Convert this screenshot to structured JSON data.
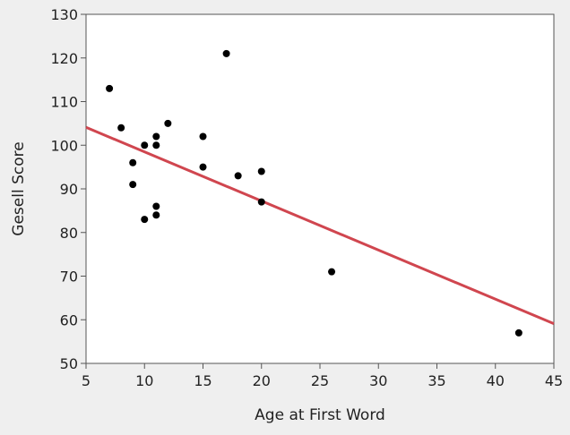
{
  "chart_data": {
    "type": "scatter",
    "title": "",
    "xlabel": "Age at First Word",
    "ylabel": "Gesell Score",
    "xlim": [
      5,
      45
    ],
    "ylim": [
      50,
      130
    ],
    "x_ticks": [
      5,
      10,
      15,
      20,
      25,
      30,
      35,
      40,
      45
    ],
    "y_ticks": [
      50,
      60,
      70,
      80,
      90,
      100,
      110,
      120,
      130
    ],
    "grid": false,
    "legend": "none",
    "points": [
      {
        "x": 7,
        "y": 113
      },
      {
        "x": 8,
        "y": 104
      },
      {
        "x": 9,
        "y": 96
      },
      {
        "x": 9,
        "y": 91
      },
      {
        "x": 10,
        "y": 100
      },
      {
        "x": 10,
        "y": 83
      },
      {
        "x": 11,
        "y": 102
      },
      {
        "x": 11,
        "y": 100
      },
      {
        "x": 11,
        "y": 86
      },
      {
        "x": 11,
        "y": 84
      },
      {
        "x": 12,
        "y": 105
      },
      {
        "x": 15,
        "y": 102
      },
      {
        "x": 15,
        "y": 95
      },
      {
        "x": 17,
        "y": 121
      },
      {
        "x": 18,
        "y": 93
      },
      {
        "x": 20,
        "y": 94
      },
      {
        "x": 20,
        "y": 87
      },
      {
        "x": 26,
        "y": 71
      },
      {
        "x": 42,
        "y": 57
      }
    ],
    "fit_line": {
      "x": [
        5,
        45
      ],
      "y": [
        104.1,
        59.1
      ]
    },
    "colors": {
      "background": "#efefef",
      "plot_background": "#ffffff",
      "axis": "#555555",
      "points": "#000000",
      "fit_line": "#d0464f"
    }
  }
}
